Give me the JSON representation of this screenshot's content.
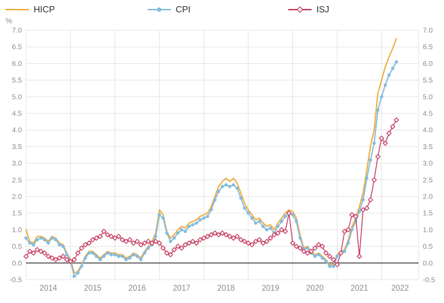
{
  "legend": {
    "items": [
      {
        "label": "HICP",
        "color": "#efaa38",
        "marker": "line"
      },
      {
        "label": "CPI",
        "color": "#82bcdf",
        "marker": "circle"
      },
      {
        "label": "ISJ",
        "color": "#c53a5e",
        "marker": "diamond"
      }
    ]
  },
  "axis": {
    "unit_label": "%",
    "y_ticks": [
      "7.0",
      "6.5",
      "6.0",
      "5.5",
      "5.0",
      "4.5",
      "4.0",
      "3.5",
      "3.0",
      "2.5",
      "2.0",
      "1.5",
      "1.0",
      "0.5",
      "0.0",
      "-0.5"
    ],
    "x_years": [
      "2014",
      "2015",
      "2016",
      "2017",
      "2018",
      "2019",
      "2020",
      "2021",
      "2022"
    ]
  },
  "chart_data": {
    "type": "line",
    "title": "",
    "xlabel": "",
    "ylabel": "%",
    "frequency": "monthly",
    "x_start": "2014-01",
    "x_end": "2022-05",
    "x_domain_months": 106,
    "ylim": [
      -0.5,
      7.0
    ],
    "y_step": 0.5,
    "grid": true,
    "legend_position": "top",
    "series": [
      {
        "name": "HICP",
        "color": "#efaa38",
        "marker": "none",
        "line_width": 1.8,
        "values": [
          1.0,
          0.65,
          0.6,
          0.8,
          0.8,
          0.75,
          0.65,
          0.8,
          0.75,
          0.6,
          0.55,
          0.3,
          0.1,
          -0.3,
          -0.25,
          -0.05,
          0.2,
          0.35,
          0.35,
          0.25,
          0.15,
          0.25,
          0.35,
          0.3,
          0.3,
          0.25,
          0.25,
          0.15,
          0.2,
          0.3,
          0.25,
          0.15,
          0.35,
          0.5,
          0.65,
          0.9,
          1.6,
          1.45,
          0.95,
          0.75,
          0.85,
          1.0,
          1.1,
          1.05,
          1.2,
          1.25,
          1.3,
          1.4,
          1.45,
          1.5,
          1.7,
          2.0,
          2.3,
          2.45,
          2.55,
          2.45,
          2.55,
          2.4,
          2.1,
          1.8,
          1.6,
          1.45,
          1.3,
          1.35,
          1.2,
          1.1,
          1.15,
          1.0,
          1.2,
          1.35,
          1.5,
          1.6,
          1.55,
          1.35,
          0.85,
          0.45,
          0.5,
          0.35,
          0.25,
          0.3,
          0.2,
          0.1,
          -0.05,
          -0.05,
          0.25,
          0.35,
          0.4,
          0.7,
          1.1,
          1.35,
          1.7,
          2.1,
          2.8,
          3.5,
          4.0,
          5.1,
          5.5,
          5.9,
          6.2,
          6.45,
          6.75
        ]
      },
      {
        "name": "CPI",
        "color": "#82bcdf",
        "marker": "circle",
        "line_width": 1.8,
        "values": [
          0.75,
          0.6,
          0.55,
          0.7,
          0.75,
          0.7,
          0.6,
          0.75,
          0.7,
          0.55,
          0.5,
          0.25,
          0.05,
          -0.4,
          -0.3,
          -0.1,
          0.15,
          0.3,
          0.3,
          0.2,
          0.1,
          0.2,
          0.3,
          0.25,
          0.25,
          0.2,
          0.2,
          0.1,
          0.15,
          0.25,
          0.2,
          0.1,
          0.3,
          0.45,
          0.55,
          0.8,
          1.45,
          1.35,
          0.9,
          0.65,
          0.75,
          0.9,
          1.0,
          0.95,
          1.1,
          1.15,
          1.2,
          1.3,
          1.35,
          1.4,
          1.6,
          1.9,
          2.15,
          2.3,
          2.35,
          2.3,
          2.35,
          2.25,
          1.95,
          1.65,
          1.5,
          1.35,
          1.2,
          1.25,
          1.1,
          1.0,
          1.05,
          0.9,
          1.1,
          1.25,
          1.4,
          1.5,
          1.45,
          1.25,
          0.75,
          0.4,
          0.45,
          0.3,
          0.2,
          0.25,
          0.15,
          0.05,
          -0.1,
          -0.1,
          0.2,
          0.3,
          0.35,
          0.6,
          1.0,
          1.25,
          1.55,
          1.9,
          2.55,
          3.1,
          3.6,
          4.6,
          5.0,
          5.35,
          5.65,
          5.85,
          6.05
        ]
      },
      {
        "name": "ISJ",
        "color": "#c53a5e",
        "marker": "diamond",
        "line_width": 1.3,
        "values": [
          0.2,
          0.35,
          0.3,
          0.4,
          0.35,
          0.3,
          0.2,
          0.15,
          0.1,
          0.15,
          0.2,
          0.1,
          0.05,
          0.1,
          0.3,
          0.45,
          0.55,
          0.6,
          0.7,
          0.75,
          0.8,
          0.95,
          0.85,
          0.8,
          0.75,
          0.8,
          0.7,
          0.65,
          0.7,
          0.6,
          0.65,
          0.55,
          0.6,
          0.65,
          0.6,
          0.65,
          0.6,
          0.45,
          0.3,
          0.25,
          0.4,
          0.5,
          0.45,
          0.55,
          0.6,
          0.65,
          0.6,
          0.7,
          0.75,
          0.8,
          0.85,
          0.9,
          0.85,
          0.9,
          0.85,
          0.8,
          0.75,
          0.8,
          0.7,
          0.65,
          0.6,
          0.55,
          0.65,
          0.7,
          0.6,
          0.65,
          0.75,
          0.85,
          0.9,
          1.0,
          0.95,
          1.5,
          0.6,
          0.5,
          0.45,
          0.35,
          0.3,
          0.35,
          0.45,
          0.55,
          0.5,
          0.3,
          0.2,
          0.1,
          -0.05,
          0.3,
          0.95,
          1.0,
          1.45,
          1.4,
          0.2,
          1.6,
          1.65,
          1.9,
          2.5,
          3.2,
          3.75,
          3.6,
          3.9,
          4.1,
          4.3
        ]
      }
    ]
  }
}
